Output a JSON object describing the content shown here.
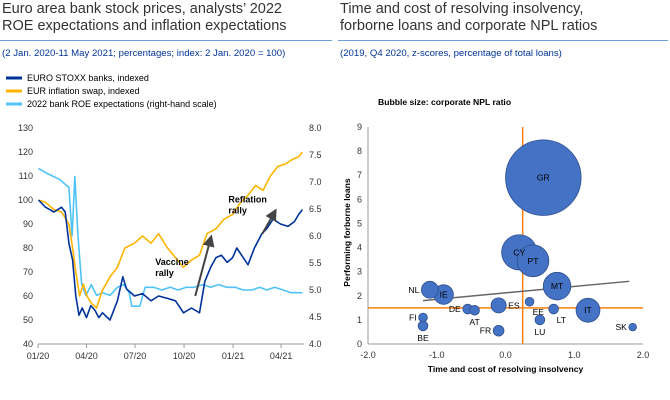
{
  "left": {
    "title_line1": "Euro area bank stock prices, analysts’ 2022",
    "title_line2": "ROE expectations and inflation expectations",
    "subtitle": "(2 Jan. 2020-11 May 2021; percentages; index: 2 Jan. 2020 = 100)"
  },
  "right": {
    "title_line1": "Time and cost of resolving insolvency,",
    "title_line2": "forborne loans and corporate NPL ratios",
    "subtitle": "(2019, Q4 2020, z-scores, percentage of total loans)"
  },
  "chart_data": [
    {
      "type": "line",
      "x_ticks": [
        "01/20",
        "04/20",
        "07/20",
        "10/20",
        "01/21",
        "04/21"
      ],
      "y_left": {
        "lim": [
          40,
          130
        ],
        "ticks": [
          "40",
          "50",
          "60",
          "70",
          "80",
          "90",
          "100",
          "110",
          "120",
          "130"
        ]
      },
      "y_right": {
        "lim": [
          4.0,
          8.0
        ],
        "ticks": [
          "4.0",
          "4.5",
          "5.0",
          "5.5",
          "6.0",
          "6.5",
          "7.0",
          "7.5",
          "8.0"
        ]
      },
      "grid": false,
      "legend_position": "top-left",
      "series": [
        {
          "name": "EURO STOXX banks, indexed",
          "axis": "left",
          "color": "#003299",
          "points": [
            [
              "2020-01-02",
              100
            ],
            [
              "2020-01-15",
              97
            ],
            [
              "2020-01-31",
              95
            ],
            [
              "2020-02-14",
              97
            ],
            [
              "2020-02-21",
              95
            ],
            [
              "2020-02-28",
              82
            ],
            [
              "2020-03-06",
              75
            ],
            [
              "2020-03-12",
              60
            ],
            [
              "2020-03-18",
              52
            ],
            [
              "2020-03-24",
              55
            ],
            [
              "2020-04-01",
              51
            ],
            [
              "2020-04-09",
              56
            ],
            [
              "2020-04-17",
              54
            ],
            [
              "2020-04-24",
              51
            ],
            [
              "2020-05-01",
              53
            ],
            [
              "2020-05-15",
              50
            ],
            [
              "2020-05-29",
              58
            ],
            [
              "2020-06-08",
              68
            ],
            [
              "2020-06-15",
              63
            ],
            [
              "2020-06-30",
              60
            ],
            [
              "2020-07-15",
              61
            ],
            [
              "2020-07-31",
              58
            ],
            [
              "2020-08-14",
              60
            ],
            [
              "2020-08-31",
              59
            ],
            [
              "2020-09-15",
              58
            ],
            [
              "2020-09-30",
              53
            ],
            [
              "2020-10-15",
              55
            ],
            [
              "2020-10-30",
              53
            ],
            [
              "2020-11-09",
              66
            ],
            [
              "2020-11-20",
              72
            ],
            [
              "2020-11-30",
              76
            ],
            [
              "2020-12-10",
              77
            ],
            [
              "2020-12-21",
              74
            ],
            [
              "2020-12-31",
              76
            ],
            [
              "2021-01-08",
              80
            ],
            [
              "2021-01-20",
              76
            ],
            [
              "2021-01-29",
              73
            ],
            [
              "2021-02-10",
              80
            ],
            [
              "2021-02-24",
              86
            ],
            [
              "2021-03-05",
              88
            ],
            [
              "2021-03-17",
              92
            ],
            [
              "2021-03-31",
              90
            ],
            [
              "2021-04-14",
              89
            ],
            [
              "2021-04-26",
              91
            ],
            [
              "2021-05-04",
              94
            ],
            [
              "2021-05-11",
              96
            ]
          ]
        },
        {
          "name": "EUR inflation swap, indexed",
          "axis": "left",
          "color": "#ffb400",
          "points": [
            [
              "2020-01-02",
              100
            ],
            [
              "2020-01-15",
              99
            ],
            [
              "2020-01-31",
              96
            ],
            [
              "2020-02-14",
              95
            ],
            [
              "2020-02-28",
              90
            ],
            [
              "2020-03-06",
              80
            ],
            [
              "2020-03-12",
              70
            ],
            [
              "2020-03-19",
              60
            ],
            [
              "2020-03-26",
              65
            ],
            [
              "2020-04-02",
              60
            ],
            [
              "2020-04-10",
              57
            ],
            [
              "2020-04-20",
              55
            ],
            [
              "2020-04-30",
              62
            ],
            [
              "2020-05-15",
              68
            ],
            [
              "2020-05-29",
              72
            ],
            [
              "2020-06-12",
              80
            ],
            [
              "2020-06-30",
              82
            ],
            [
              "2020-07-15",
              85
            ],
            [
              "2020-07-31",
              82
            ],
            [
              "2020-08-14",
              86
            ],
            [
              "2020-08-31",
              80
            ],
            [
              "2020-09-15",
              76
            ],
            [
              "2020-09-30",
              72
            ],
            [
              "2020-10-15",
              75
            ],
            [
              "2020-10-30",
              77
            ],
            [
              "2020-11-13",
              86
            ],
            [
              "2020-11-30",
              88
            ],
            [
              "2020-12-15",
              92
            ],
            [
              "2020-12-31",
              94
            ],
            [
              "2021-01-15",
              99
            ],
            [
              "2021-01-29",
              102
            ],
            [
              "2021-02-12",
              106
            ],
            [
              "2021-02-26",
              104
            ],
            [
              "2021-03-12",
              110
            ],
            [
              "2021-03-26",
              114
            ],
            [
              "2021-04-09",
              115
            ],
            [
              "2021-04-23",
              117
            ],
            [
              "2021-05-04",
              118
            ],
            [
              "2021-05-11",
              120
            ]
          ]
        },
        {
          "name": "2022 bank ROE expectations (right-hand scale)",
          "axis": "right",
          "color": "#4fc3f7",
          "points": [
            [
              "2020-01-02",
              7.25
            ],
            [
              "2020-01-20",
              7.15
            ],
            [
              "2020-02-10",
              7.05
            ],
            [
              "2020-02-28",
              6.9
            ],
            [
              "2020-03-05",
              6.0
            ],
            [
              "2020-03-10",
              7.1
            ],
            [
              "2020-03-16",
              6.0
            ],
            [
              "2020-03-23",
              5.1
            ],
            [
              "2020-03-31",
              4.9
            ],
            [
              "2020-04-10",
              5.1
            ],
            [
              "2020-04-20",
              4.9
            ],
            [
              "2020-05-01",
              4.95
            ],
            [
              "2020-05-15",
              4.9
            ],
            [
              "2020-05-29",
              5.05
            ],
            [
              "2020-06-10",
              5.1
            ],
            [
              "2020-06-20",
              4.95
            ],
            [
              "2020-06-25",
              4.7
            ],
            [
              "2020-07-10",
              4.7
            ],
            [
              "2020-07-20",
              5.05
            ],
            [
              "2020-08-05",
              5.05
            ],
            [
              "2020-08-20",
              5.0
            ],
            [
              "2020-09-05",
              5.05
            ],
            [
              "2020-09-20",
              5.0
            ],
            [
              "2020-10-05",
              5.05
            ],
            [
              "2020-10-20",
              5.05
            ],
            [
              "2020-11-05",
              5.1
            ],
            [
              "2020-11-20",
              5.05
            ],
            [
              "2020-12-05",
              5.1
            ],
            [
              "2020-12-20",
              5.05
            ],
            [
              "2021-01-05",
              5.05
            ],
            [
              "2021-01-20",
              5.0
            ],
            [
              "2021-02-05",
              5.0
            ],
            [
              "2021-02-20",
              5.05
            ],
            [
              "2021-03-05",
              5.0
            ],
            [
              "2021-03-20",
              5.05
            ],
            [
              "2021-04-05",
              5.0
            ],
            [
              "2021-04-20",
              4.95
            ],
            [
              "2021-05-11",
              4.95
            ]
          ]
        }
      ],
      "annotations": [
        {
          "text_lines": [
            "Vaccine",
            "rally"
          ],
          "arrow_from": [
            "2020-10-22",
            60
          ],
          "arrow_to": [
            "2020-11-20",
            84
          ]
        },
        {
          "text_lines": [
            "Reflation",
            "rally"
          ],
          "arrow_from": [
            "2021-02-25",
            86
          ],
          "arrow_to": [
            "2021-03-20",
            95
          ]
        }
      ]
    },
    {
      "type": "scatter",
      "title": "Bubble size: corporate NPL ratio",
      "xlabel": "Time and cost of resolving insolvency",
      "ylabel": "Performing forborne loans",
      "xlim": [
        -2.0,
        2.0
      ],
      "ylim": [
        0,
        9
      ],
      "x_ticks": [
        "-2.0",
        "-1.0",
        "0.0",
        "1.0",
        "2.0"
      ],
      "y_ticks": [
        "0",
        "1",
        "2",
        "3",
        "4",
        "5",
        "6",
        "7",
        "8",
        "9"
      ],
      "reference_lines": {
        "x": 0.25,
        "y": 1.5,
        "color": "#ff7f0e"
      },
      "trend_line": {
        "x": [
          -1.2,
          1.8
        ],
        "y": [
          1.8,
          2.6
        ],
        "color": "#666666"
      },
      "bubble_color": "#4472c4",
      "points": [
        {
          "label": "GR",
          "x": 0.55,
          "y": 6.9,
          "npl": 30.0,
          "label_pos": "center"
        },
        {
          "label": "CY",
          "x": 0.2,
          "y": 3.8,
          "npl": 6.5,
          "label_pos": "center"
        },
        {
          "label": "PT",
          "x": 0.4,
          "y": 3.45,
          "npl": 5.3,
          "label_pos": "center"
        },
        {
          "label": "MT",
          "x": 0.75,
          "y": 2.4,
          "npl": 4.0,
          "label_pos": "center"
        },
        {
          "label": "NL",
          "x": -1.1,
          "y": 2.25,
          "npl": 1.5,
          "label_pos": "left"
        },
        {
          "label": "IE",
          "x": -0.9,
          "y": 2.05,
          "npl": 2.0,
          "label_pos": "center"
        },
        {
          "label": "ES",
          "x": -0.1,
          "y": 1.6,
          "npl": 1.2,
          "label_pos": "right"
        },
        {
          "label": "EE",
          "x": 0.35,
          "y": 1.75,
          "npl": 0.4,
          "label_pos": "below-right"
        },
        {
          "label": "DE",
          "x": -0.55,
          "y": 1.45,
          "npl": 0.5,
          "label_pos": "left"
        },
        {
          "label": "AT",
          "x": -0.45,
          "y": 1.4,
          "npl": 0.5,
          "label_pos": "below"
        },
        {
          "label": "IT",
          "x": 1.2,
          "y": 1.4,
          "npl": 3.0,
          "label_pos": "center"
        },
        {
          "label": "LT",
          "x": 0.7,
          "y": 1.45,
          "npl": 0.5,
          "label_pos": "below-right"
        },
        {
          "label": "FI",
          "x": -1.2,
          "y": 1.1,
          "npl": 0.4,
          "label_pos": "left"
        },
        {
          "label": "BE",
          "x": -1.2,
          "y": 0.75,
          "npl": 0.5,
          "label_pos": "below"
        },
        {
          "label": "FR",
          "x": -0.1,
          "y": 0.55,
          "npl": 0.6,
          "label_pos": "left"
        },
        {
          "label": "LU",
          "x": 0.5,
          "y": 1.0,
          "npl": 0.5,
          "label_pos": "below"
        },
        {
          "label": "SK",
          "x": 1.85,
          "y": 0.7,
          "npl": 0.3,
          "label_pos": "left"
        }
      ]
    }
  ]
}
